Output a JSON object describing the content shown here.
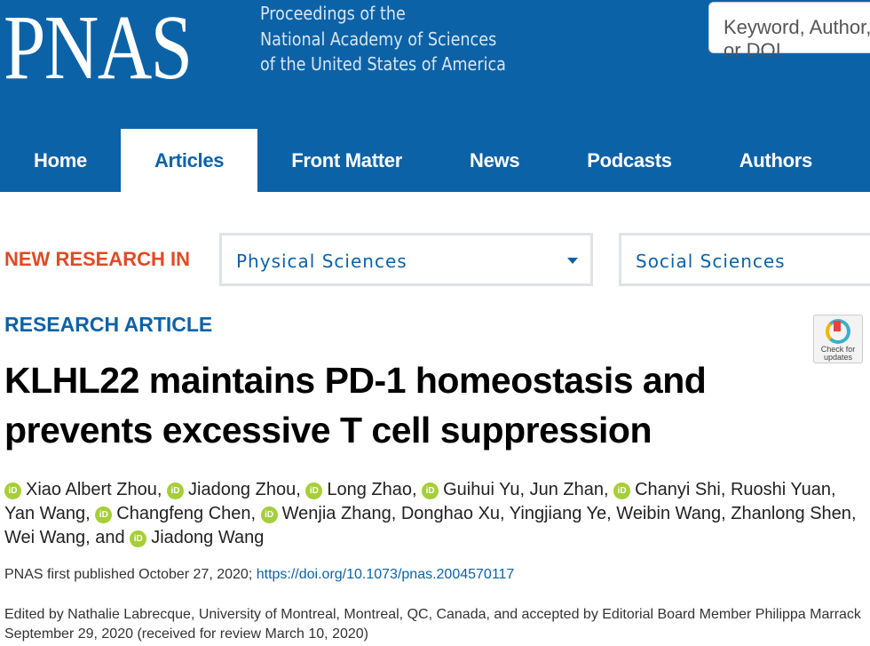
{
  "header": {
    "logo": "PNAS",
    "tagline": [
      "Proceedings of the",
      "National Academy of Sciences",
      "of the United States of America"
    ],
    "search_placeholder": "Keyword, Author, or DOI"
  },
  "nav": [
    "Home",
    "Articles",
    "Front Matter",
    "News",
    "Podcasts",
    "Authors"
  ],
  "nav_active": "Articles",
  "new_research": {
    "label": "NEW RESEARCH IN",
    "physical": "Physical Sciences",
    "social": "Social Sciences"
  },
  "article": {
    "type": "RESEARCH ARTICLE",
    "check_updates": "Check for updates",
    "title": "KLHL22 maintains PD-1 homeostasis and prevents excessive T cell suppression",
    "authors": [
      {
        "name": "Xiao Albert Zhou",
        "orcid": true
      },
      {
        "name": "Jiadong Zhou",
        "orcid": true
      },
      {
        "name": "Long Zhao",
        "orcid": true
      },
      {
        "name": "Guihui Yu",
        "orcid": true
      },
      {
        "name": "Jun Zhan",
        "orcid": false
      },
      {
        "name": "Chanyi Shi",
        "orcid": true
      },
      {
        "name": "Ruoshi Yuan",
        "orcid": false
      },
      {
        "name": "Yan Wang",
        "orcid": false
      },
      {
        "name": "Changfeng Chen",
        "orcid": true
      },
      {
        "name": "Wenjia Zhang",
        "orcid": true
      },
      {
        "name": "Donghao Xu",
        "orcid": false
      },
      {
        "name": "Yingjiang Ye",
        "orcid": false
      },
      {
        "name": "Weibin Wang",
        "orcid": false
      },
      {
        "name": "Zhanlong Shen",
        "orcid": false
      },
      {
        "name": "Wei Wang",
        "orcid": false
      },
      {
        "name": "Jiadong Wang",
        "orcid": true
      }
    ],
    "published": "PNAS first published October 27, 2020;",
    "doi": "https://doi.org/10.1073/pnas.2004570117",
    "edited": "Edited by Nathalie Labrecque, University of Montreal, Montreal, QC, Canada, and accepted by Editorial Board Member Philippa Marrack September 29, 2020 (received for review March 10, 2020)"
  },
  "colors": {
    "brand": "#0c62a7",
    "accent": "#e04a24",
    "orcid": "#a6ce39"
  }
}
